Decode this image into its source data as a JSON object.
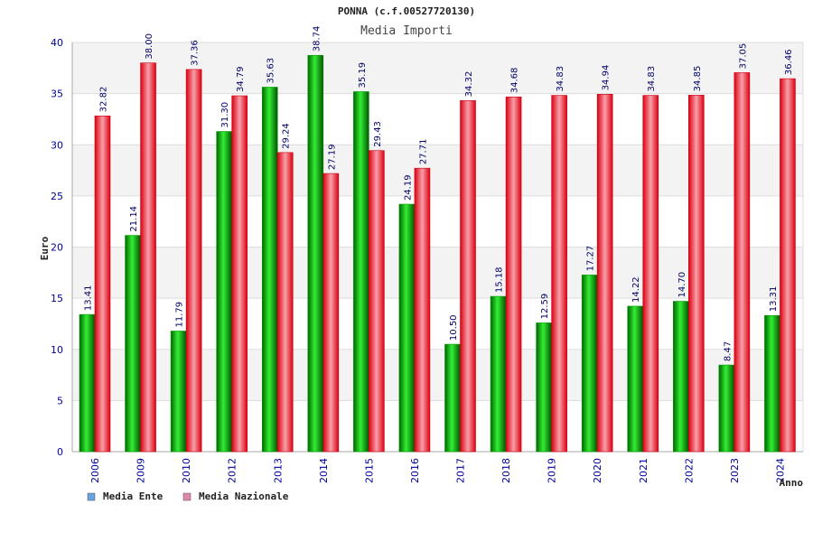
{
  "chart_data": {
    "type": "bar",
    "title": "PONNA (c.f.00527720130)",
    "subtitle": "Media Importi",
    "xlabel": "Anno",
    "ylabel": "Euro",
    "ylim": [
      0,
      40
    ],
    "yticks": [
      0,
      5,
      10,
      15,
      20,
      25,
      30,
      35,
      40
    ],
    "grid": true,
    "legend_position": "bottom-left",
    "categories": [
      "2006",
      "2009",
      "2010",
      "2012",
      "2013",
      "2014",
      "2015",
      "2016",
      "2017",
      "2018",
      "2019",
      "2020",
      "2021",
      "2022",
      "2023",
      "2024"
    ],
    "series": [
      {
        "name": "Media Ente",
        "color": "#00cc00",
        "legend_color": "#66a3e0",
        "values": [
          13.41,
          21.14,
          11.79,
          31.3,
          35.63,
          38.74,
          35.19,
          24.19,
          10.5,
          15.18,
          12.59,
          17.27,
          14.22,
          14.7,
          8.47,
          13.31
        ],
        "labels": [
          "13.41",
          "21.14",
          "11.79",
          "31.30",
          "35.63",
          "38.74",
          "35.19",
          "24.19",
          "10.50",
          "15.18",
          "12.59",
          "17.27",
          "14.22",
          "14.70",
          "8.47",
          "13.31"
        ]
      },
      {
        "name": "Media Nazionale",
        "color": "#ee1122",
        "legend_color": "#dd88aa",
        "values": [
          32.82,
          38.0,
          37.36,
          34.79,
          29.24,
          27.19,
          29.43,
          27.71,
          34.32,
          34.68,
          34.83,
          34.94,
          34.83,
          34.85,
          37.05,
          36.46
        ],
        "labels": [
          "32.82",
          "38.00",
          "37.36",
          "34.79",
          "29.24",
          "27.19",
          "29.43",
          "27.71",
          "34.32",
          "34.68",
          "34.83",
          "34.94",
          "34.83",
          "34.85",
          "37.05",
          "36.46"
        ]
      }
    ]
  }
}
